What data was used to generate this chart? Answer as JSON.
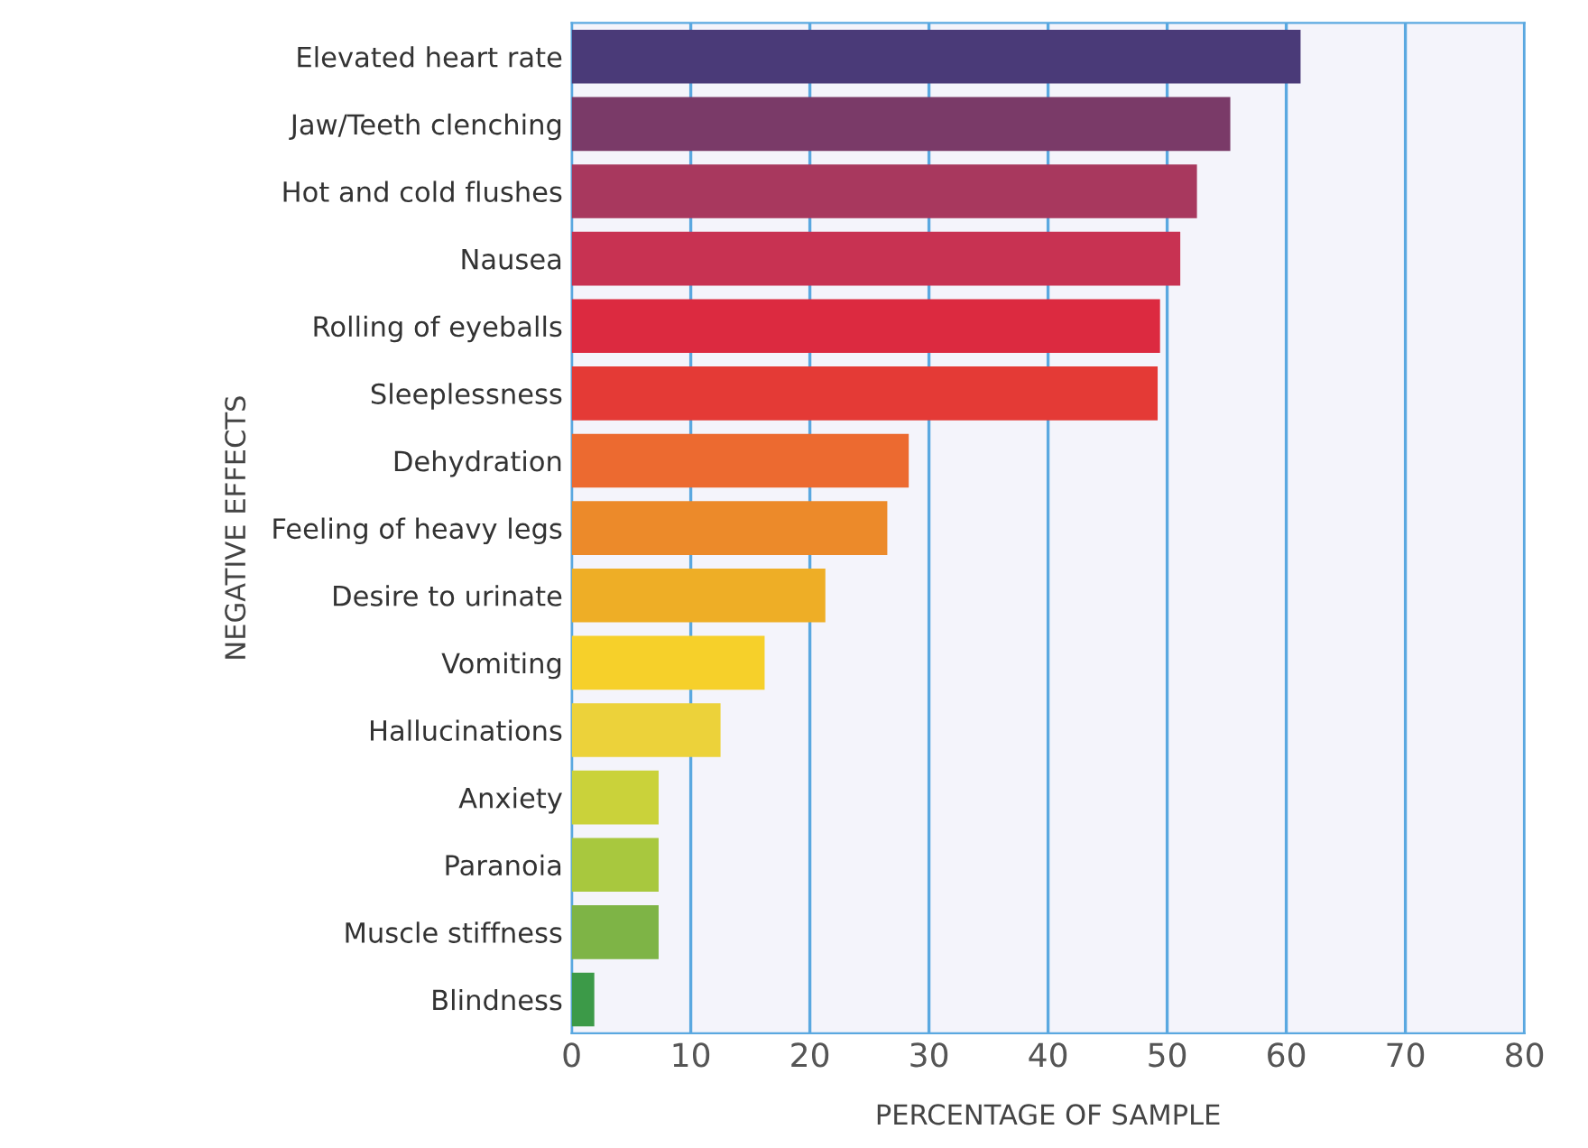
{
  "chart_data": {
    "type": "bar",
    "orientation": "horizontal",
    "xlabel": "PERCENTAGE OF SAMPLE",
    "ylabel": "NEGATIVE EFFECTS",
    "categories": [
      "Elevated heart rate",
      "Jaw/Teeth clenching",
      "Hot and cold flushes",
      "Nausea",
      "Rolling of eyeballs",
      "Sleeplessness",
      "Dehydration",
      "Feeling of heavy legs",
      "Desire to urinate",
      "Vomiting",
      "Hallucinations",
      "Anxiety",
      "Paranoia",
      "Muscle stiffness",
      "Blindness"
    ],
    "values": [
      61.2,
      55.3,
      52.5,
      51.1,
      49.4,
      49.2,
      28.3,
      26.5,
      21.3,
      16.2,
      12.5,
      7.3,
      7.3,
      7.3,
      1.9
    ],
    "colors": [
      "#4a3a78",
      "#7a3a68",
      "#a8385e",
      "#c83252",
      "#dc2a40",
      "#e43a36",
      "#ec6a30",
      "#ec8a2a",
      "#eeae26",
      "#f6d02a",
      "#ecd23a",
      "#cad23a",
      "#a8c83e",
      "#7eb446",
      "#3c9a48"
    ],
    "xlim": [
      0,
      80
    ],
    "xticks": [
      0,
      10,
      20,
      30,
      40,
      50,
      60,
      70,
      80
    ],
    "grid": "x"
  }
}
